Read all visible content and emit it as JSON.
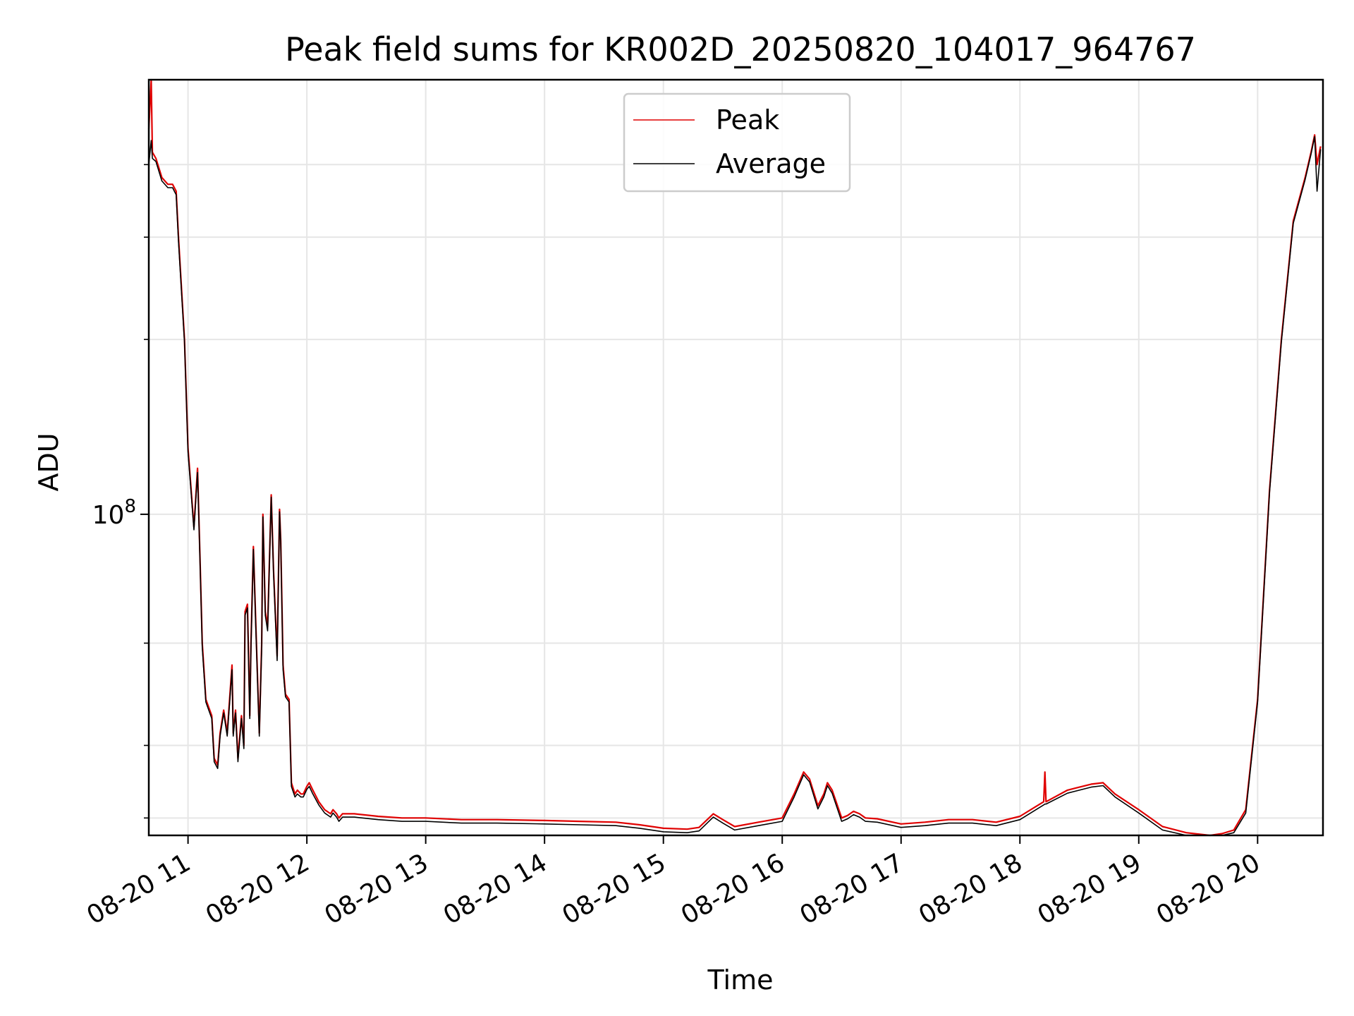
{
  "chart_data": {
    "type": "line",
    "title": "Peak field sums for KR002D_20250820_104017_964767",
    "xlabel": "Time",
    "ylabel": "ADU",
    "x_ticks": [
      "08-20 11",
      "08-20 12",
      "08-20 13",
      "08-20 14",
      "08-20 15",
      "08-20 16",
      "08-20 17",
      "08-20 18",
      "08-20 19",
      "08-20 20"
    ],
    "y_ticks": [
      {
        "value": 100000000,
        "base": "10",
        "exp": "8"
      }
    ],
    "y_scale": "log",
    "grid": true,
    "legend_placement": "top-center",
    "x_range": [
      "08-20 10:40",
      "08-20 20:33"
    ],
    "ylim": [
      28000000,
      560000000
    ],
    "colors": {
      "peak": "#e00000",
      "average": "#000000",
      "grid": "#e6e6e6"
    },
    "x_unit": "hours since 08-20 00:00",
    "series": [
      {
        "name": "Peak",
        "color": "#e00000",
        "x": [
          10.67,
          10.69,
          10.7,
          10.73,
          10.78,
          10.83,
          10.87,
          10.9,
          10.92,
          10.97,
          11.0,
          11.05,
          11.08,
          11.1,
          11.12,
          11.15,
          11.2,
          11.22,
          11.25,
          11.27,
          11.3,
          11.33,
          11.37,
          11.38,
          11.4,
          11.42,
          11.45,
          11.47,
          11.48,
          11.5,
          11.52,
          11.53,
          11.55,
          11.57,
          11.6,
          11.62,
          11.63,
          11.65,
          11.67,
          11.7,
          11.72,
          11.75,
          11.77,
          11.78,
          11.8,
          11.82,
          11.85,
          11.87,
          11.9,
          11.92,
          11.95,
          11.97,
          12.0,
          12.02,
          12.05,
          12.1,
          12.15,
          12.2,
          12.22,
          12.25,
          12.27,
          12.3,
          12.4,
          12.6,
          12.8,
          13.0,
          13.3,
          13.6,
          14.0,
          14.3,
          14.6,
          14.8,
          15.0,
          15.2,
          15.3,
          15.42,
          15.5,
          15.6,
          15.8,
          16.0,
          16.1,
          16.18,
          16.23,
          16.3,
          16.35,
          16.38,
          16.42,
          16.5,
          16.55,
          16.6,
          16.65,
          16.7,
          16.8,
          17.0,
          17.2,
          17.4,
          17.6,
          17.8,
          18.0,
          18.2,
          18.21,
          18.22,
          18.4,
          18.6,
          18.7,
          18.8,
          19.0,
          19.2,
          19.4,
          19.6,
          19.7,
          19.8,
          19.9,
          20.0,
          20.1,
          20.2,
          20.3,
          20.4,
          20.45,
          20.48,
          20.5,
          20.53
        ],
        "values": [
          460000000,
          560000000,
          420000000,
          410000000,
          380000000,
          370000000,
          370000000,
          360000000,
          300000000,
          200000000,
          130000000,
          95000000,
          120000000,
          85000000,
          60000000,
          48000000,
          45000000,
          38000000,
          37000000,
          42000000,
          46000000,
          42000000,
          55000000,
          42000000,
          46000000,
          38000000,
          45000000,
          40000000,
          68000000,
          70000000,
          45000000,
          60000000,
          88000000,
          65000000,
          42000000,
          60000000,
          100000000,
          68000000,
          64000000,
          108000000,
          80000000,
          57000000,
          102000000,
          90000000,
          55000000,
          49000000,
          48000000,
          34500000,
          33000000,
          33500000,
          33000000,
          33000000,
          34000000,
          34500000,
          33500000,
          32000000,
          31000000,
          30500000,
          31000000,
          30500000,
          30000000,
          30500000,
          30500000,
          30200000,
          30000000,
          30000000,
          29800000,
          29800000,
          29700000,
          29600000,
          29500000,
          29200000,
          28800000,
          28700000,
          28900000,
          30500000,
          29800000,
          29000000,
          29500000,
          30000000,
          33000000,
          36000000,
          35000000,
          31500000,
          33000000,
          34500000,
          33500000,
          30000000,
          30300000,
          30800000,
          30500000,
          30000000,
          29900000,
          29300000,
          29500000,
          29800000,
          29800000,
          29500000,
          30200000,
          32000000,
          36000000,
          32000000,
          33500000,
          34300000,
          34500000,
          33000000,
          31000000,
          29000000,
          28300000,
          28000000,
          28200000,
          28600000,
          31000000,
          48000000,
          110000000,
          200000000,
          320000000,
          380000000,
          420000000,
          450000000,
          400000000,
          430000000
        ]
      },
      {
        "name": "Average",
        "color": "#000000",
        "x": [
          10.67,
          10.69,
          10.7,
          10.73,
          10.78,
          10.83,
          10.87,
          10.9,
          10.92,
          10.97,
          11.0,
          11.05,
          11.08,
          11.1,
          11.12,
          11.15,
          11.2,
          11.22,
          11.25,
          11.27,
          11.3,
          11.33,
          11.37,
          11.38,
          11.4,
          11.42,
          11.45,
          11.47,
          11.48,
          11.5,
          11.52,
          11.53,
          11.55,
          11.57,
          11.6,
          11.62,
          11.63,
          11.65,
          11.67,
          11.7,
          11.72,
          11.75,
          11.77,
          11.78,
          11.8,
          11.82,
          11.85,
          11.87,
          11.9,
          11.92,
          11.95,
          11.97,
          12.0,
          12.02,
          12.05,
          12.1,
          12.15,
          12.2,
          12.22,
          12.25,
          12.27,
          12.3,
          12.4,
          12.6,
          12.8,
          13.0,
          13.3,
          13.6,
          14.0,
          14.3,
          14.6,
          14.8,
          15.0,
          15.2,
          15.3,
          15.42,
          15.5,
          15.6,
          15.8,
          16.0,
          16.1,
          16.18,
          16.23,
          16.3,
          16.35,
          16.38,
          16.42,
          16.5,
          16.55,
          16.6,
          16.65,
          16.7,
          16.8,
          17.0,
          17.2,
          17.4,
          17.6,
          17.8,
          18.0,
          18.2,
          18.21,
          18.22,
          18.4,
          18.6,
          18.7,
          18.8,
          19.0,
          19.2,
          19.4,
          19.6,
          19.7,
          19.8,
          19.9,
          20.0,
          20.1,
          20.2,
          20.3,
          20.4,
          20.45,
          20.48,
          20.5,
          20.53
        ],
        "values": [
          400000000,
          440000000,
          410000000,
          405000000,
          375000000,
          365000000,
          365000000,
          355000000,
          295000000,
          198000000,
          128000000,
          94000000,
          118000000,
          84000000,
          59000000,
          47500000,
          44500000,
          37500000,
          36500000,
          41500000,
          45500000,
          41500000,
          54000000,
          41500000,
          45500000,
          37500000,
          44500000,
          39500000,
          67000000,
          69000000,
          44500000,
          59000000,
          87000000,
          64000000,
          41500000,
          59000000,
          99000000,
          67000000,
          63000000,
          107000000,
          79000000,
          56000000,
          101000000,
          89000000,
          54000000,
          48500000,
          47500000,
          34000000,
          32600000,
          33000000,
          32600000,
          32600000,
          33600000,
          34000000,
          33000000,
          31600000,
          30600000,
          30100000,
          30600000,
          30100000,
          29600000,
          30100000,
          30100000,
          29800000,
          29600000,
          29600000,
          29400000,
          29400000,
          29300000,
          29200000,
          29100000,
          28800000,
          28400000,
          28300000,
          28500000,
          30100000,
          29400000,
          28600000,
          29100000,
          29600000,
          32600000,
          35600000,
          34600000,
          31100000,
          32600000,
          34100000,
          33100000,
          29600000,
          29900000,
          30400000,
          30100000,
          29600000,
          29500000,
          28900000,
          29100000,
          29400000,
          29400000,
          29100000,
          29800000,
          31600000,
          31700000,
          31700000,
          33100000,
          33900000,
          34100000,
          32600000,
          30600000,
          28600000,
          27900000,
          27700000,
          27900000,
          28300000,
          30600000,
          47500000,
          109000000,
          198000000,
          317000000,
          377000000,
          417000000,
          447000000,
          360000000,
          425000000
        ]
      }
    ]
  }
}
